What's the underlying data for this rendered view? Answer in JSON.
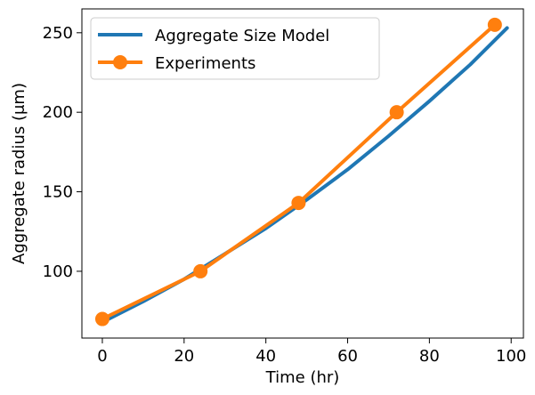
{
  "chart_data": {
    "type": "line",
    "xlabel": "Time (hr)",
    "ylabel": "Aggregate radius (μm)",
    "xlim": [
      -5,
      103
    ],
    "ylim": [
      58,
      265
    ],
    "xticks": [
      0,
      20,
      40,
      60,
      80,
      100
    ],
    "yticks": [
      100,
      150,
      200,
      250
    ],
    "grid": false,
    "legend": "top-left",
    "series": [
      {
        "name": "Aggregate Size Model",
        "style": "line",
        "color": "#1f77b4",
        "x": [
          0,
          10,
          20,
          30,
          40,
          50,
          60,
          70,
          80,
          90,
          99
        ],
        "y": [
          68,
          81,
          95,
          111,
          127,
          145,
          164,
          185,
          207,
          230,
          253
        ]
      },
      {
        "name": "Experiments",
        "style": "line-markers",
        "color": "#ff7f0e",
        "x": [
          0,
          24,
          48,
          72,
          96
        ],
        "y": [
          70,
          100,
          143,
          200,
          255
        ]
      }
    ]
  }
}
